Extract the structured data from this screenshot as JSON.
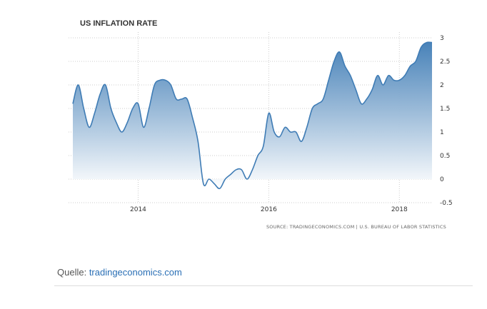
{
  "chart_data": {
    "type": "area",
    "title": "US INFLATION RATE",
    "xlabel": "",
    "ylabel": "",
    "ylim": [
      -0.5,
      3
    ],
    "y_ticks": [
      "3",
      "2.5",
      "2",
      "1.5",
      "1",
      "0.5",
      "0",
      "-0.5"
    ],
    "y_tick_values": [
      3,
      2.5,
      2,
      1.5,
      1,
      0.5,
      0,
      -0.5
    ],
    "x_ticks": [
      "2014",
      "2016",
      "2018"
    ],
    "grid": true,
    "series": [
      {
        "x": [
          "2013-01",
          "2013-02",
          "2013-03",
          "2013-04",
          "2013-05",
          "2013-06",
          "2013-07",
          "2013-08",
          "2013-09",
          "2013-10",
          "2013-11",
          "2013-12",
          "2014-01",
          "2014-02",
          "2014-03",
          "2014-04",
          "2014-05",
          "2014-06",
          "2014-07",
          "2014-08",
          "2014-09",
          "2014-10",
          "2014-11",
          "2014-12",
          "2015-01",
          "2015-02",
          "2015-03",
          "2015-04",
          "2015-05",
          "2015-06",
          "2015-07",
          "2015-08",
          "2015-09",
          "2015-10",
          "2015-11",
          "2015-12",
          "2016-01",
          "2016-02",
          "2016-03",
          "2016-04",
          "2016-05",
          "2016-06",
          "2016-07",
          "2016-08",
          "2016-09",
          "2016-10",
          "2016-11",
          "2016-12",
          "2017-01",
          "2017-02",
          "2017-03",
          "2017-04",
          "2017-05",
          "2017-06",
          "2017-07",
          "2017-08",
          "2017-09",
          "2017-10",
          "2017-11",
          "2017-12",
          "2018-01",
          "2018-02",
          "2018-03",
          "2018-04",
          "2018-05",
          "2018-06",
          "2018-07"
        ],
        "values": [
          1.6,
          2.0,
          1.5,
          1.1,
          1.4,
          1.8,
          2.0,
          1.5,
          1.2,
          1.0,
          1.2,
          1.5,
          1.6,
          1.1,
          1.5,
          2.0,
          2.1,
          2.1,
          2.0,
          1.7,
          1.7,
          1.7,
          1.3,
          0.8,
          -0.1,
          0.0,
          -0.1,
          -0.2,
          0.0,
          0.1,
          0.2,
          0.2,
          0.0,
          0.2,
          0.5,
          0.7,
          1.4,
          1.0,
          0.9,
          1.1,
          1.0,
          1.0,
          0.8,
          1.1,
          1.5,
          1.6,
          1.7,
          2.1,
          2.5,
          2.7,
          2.4,
          2.2,
          1.9,
          1.6,
          1.7,
          1.9,
          2.2,
          2.0,
          2.2,
          2.1,
          2.1,
          2.2,
          2.4,
          2.5,
          2.8,
          2.9,
          2.9
        ]
      }
    ],
    "colors": {
      "line": "#3f7cb5",
      "fill_top": "#3f7cb5",
      "fill_bottom": "#ffffff",
      "grid": "#cccccc"
    }
  },
  "source_text": "SOURCE: TRADINGECONOMICS.COM | U.S. BUREAU OF LABOR STATISTICS",
  "caption": {
    "prefix": "Quelle: ",
    "link_text": "tradingeconomics.com"
  }
}
